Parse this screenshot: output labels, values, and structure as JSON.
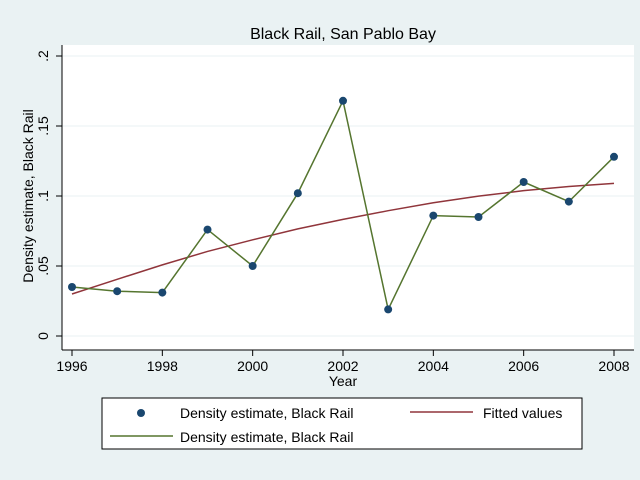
{
  "chart_data": {
    "type": "line",
    "title": "Black Rail, San Pablo Bay",
    "xlabel": "Year",
    "ylabel": "Density estimate, Black Rail",
    "xlim": [
      1996,
      2008
    ],
    "ylim": [
      0,
      0.2
    ],
    "x_ticks": [
      1996,
      1998,
      2000,
      2002,
      2004,
      2006,
      2008
    ],
    "x_tick_labels": [
      "1996",
      "1998",
      "2000",
      "2002",
      "2004",
      "2006",
      "2008"
    ],
    "y_ticks": [
      0,
      0.05,
      0.1,
      0.15,
      0.2
    ],
    "y_tick_labels": [
      "0",
      ".05",
      ".1",
      ".15",
      ".2"
    ],
    "grid": true,
    "legend_position": "bottom",
    "x": [
      1996,
      1997,
      1998,
      1999,
      2000,
      2001,
      2002,
      2003,
      2004,
      2005,
      2006,
      2007,
      2008
    ],
    "series": [
      {
        "name": "Density estimate, Black Rail",
        "kind": "scatter",
        "color": "#1a476f",
        "values": [
          0.035,
          0.032,
          0.031,
          0.076,
          0.05,
          0.102,
          0.168,
          0.019,
          0.086,
          0.085,
          0.11,
          0.096,
          0.128
        ]
      },
      {
        "name": "Fitted values",
        "kind": "line",
        "color": "#90353b",
        "values": [
          0.03,
          0.0405,
          0.0508,
          0.0604,
          0.0687,
          0.0765,
          0.0833,
          0.0895,
          0.0952,
          0.0999,
          0.1038,
          0.1068,
          0.109
        ]
      },
      {
        "name": "Density estimate, Black Rail",
        "kind": "line",
        "color": "#55752f",
        "values": [
          0.035,
          0.032,
          0.031,
          0.076,
          0.05,
          0.102,
          0.168,
          0.019,
          0.086,
          0.085,
          0.11,
          0.096,
          0.128
        ]
      }
    ],
    "legend": [
      {
        "label": "Density estimate, Black Rail",
        "symbol": "marker",
        "color": "#1a476f"
      },
      {
        "label": "Fitted values",
        "symbol": "line",
        "color": "#90353b"
      },
      {
        "label": "Density estimate, Black Rail",
        "symbol": "line",
        "color": "#55752f"
      }
    ]
  }
}
